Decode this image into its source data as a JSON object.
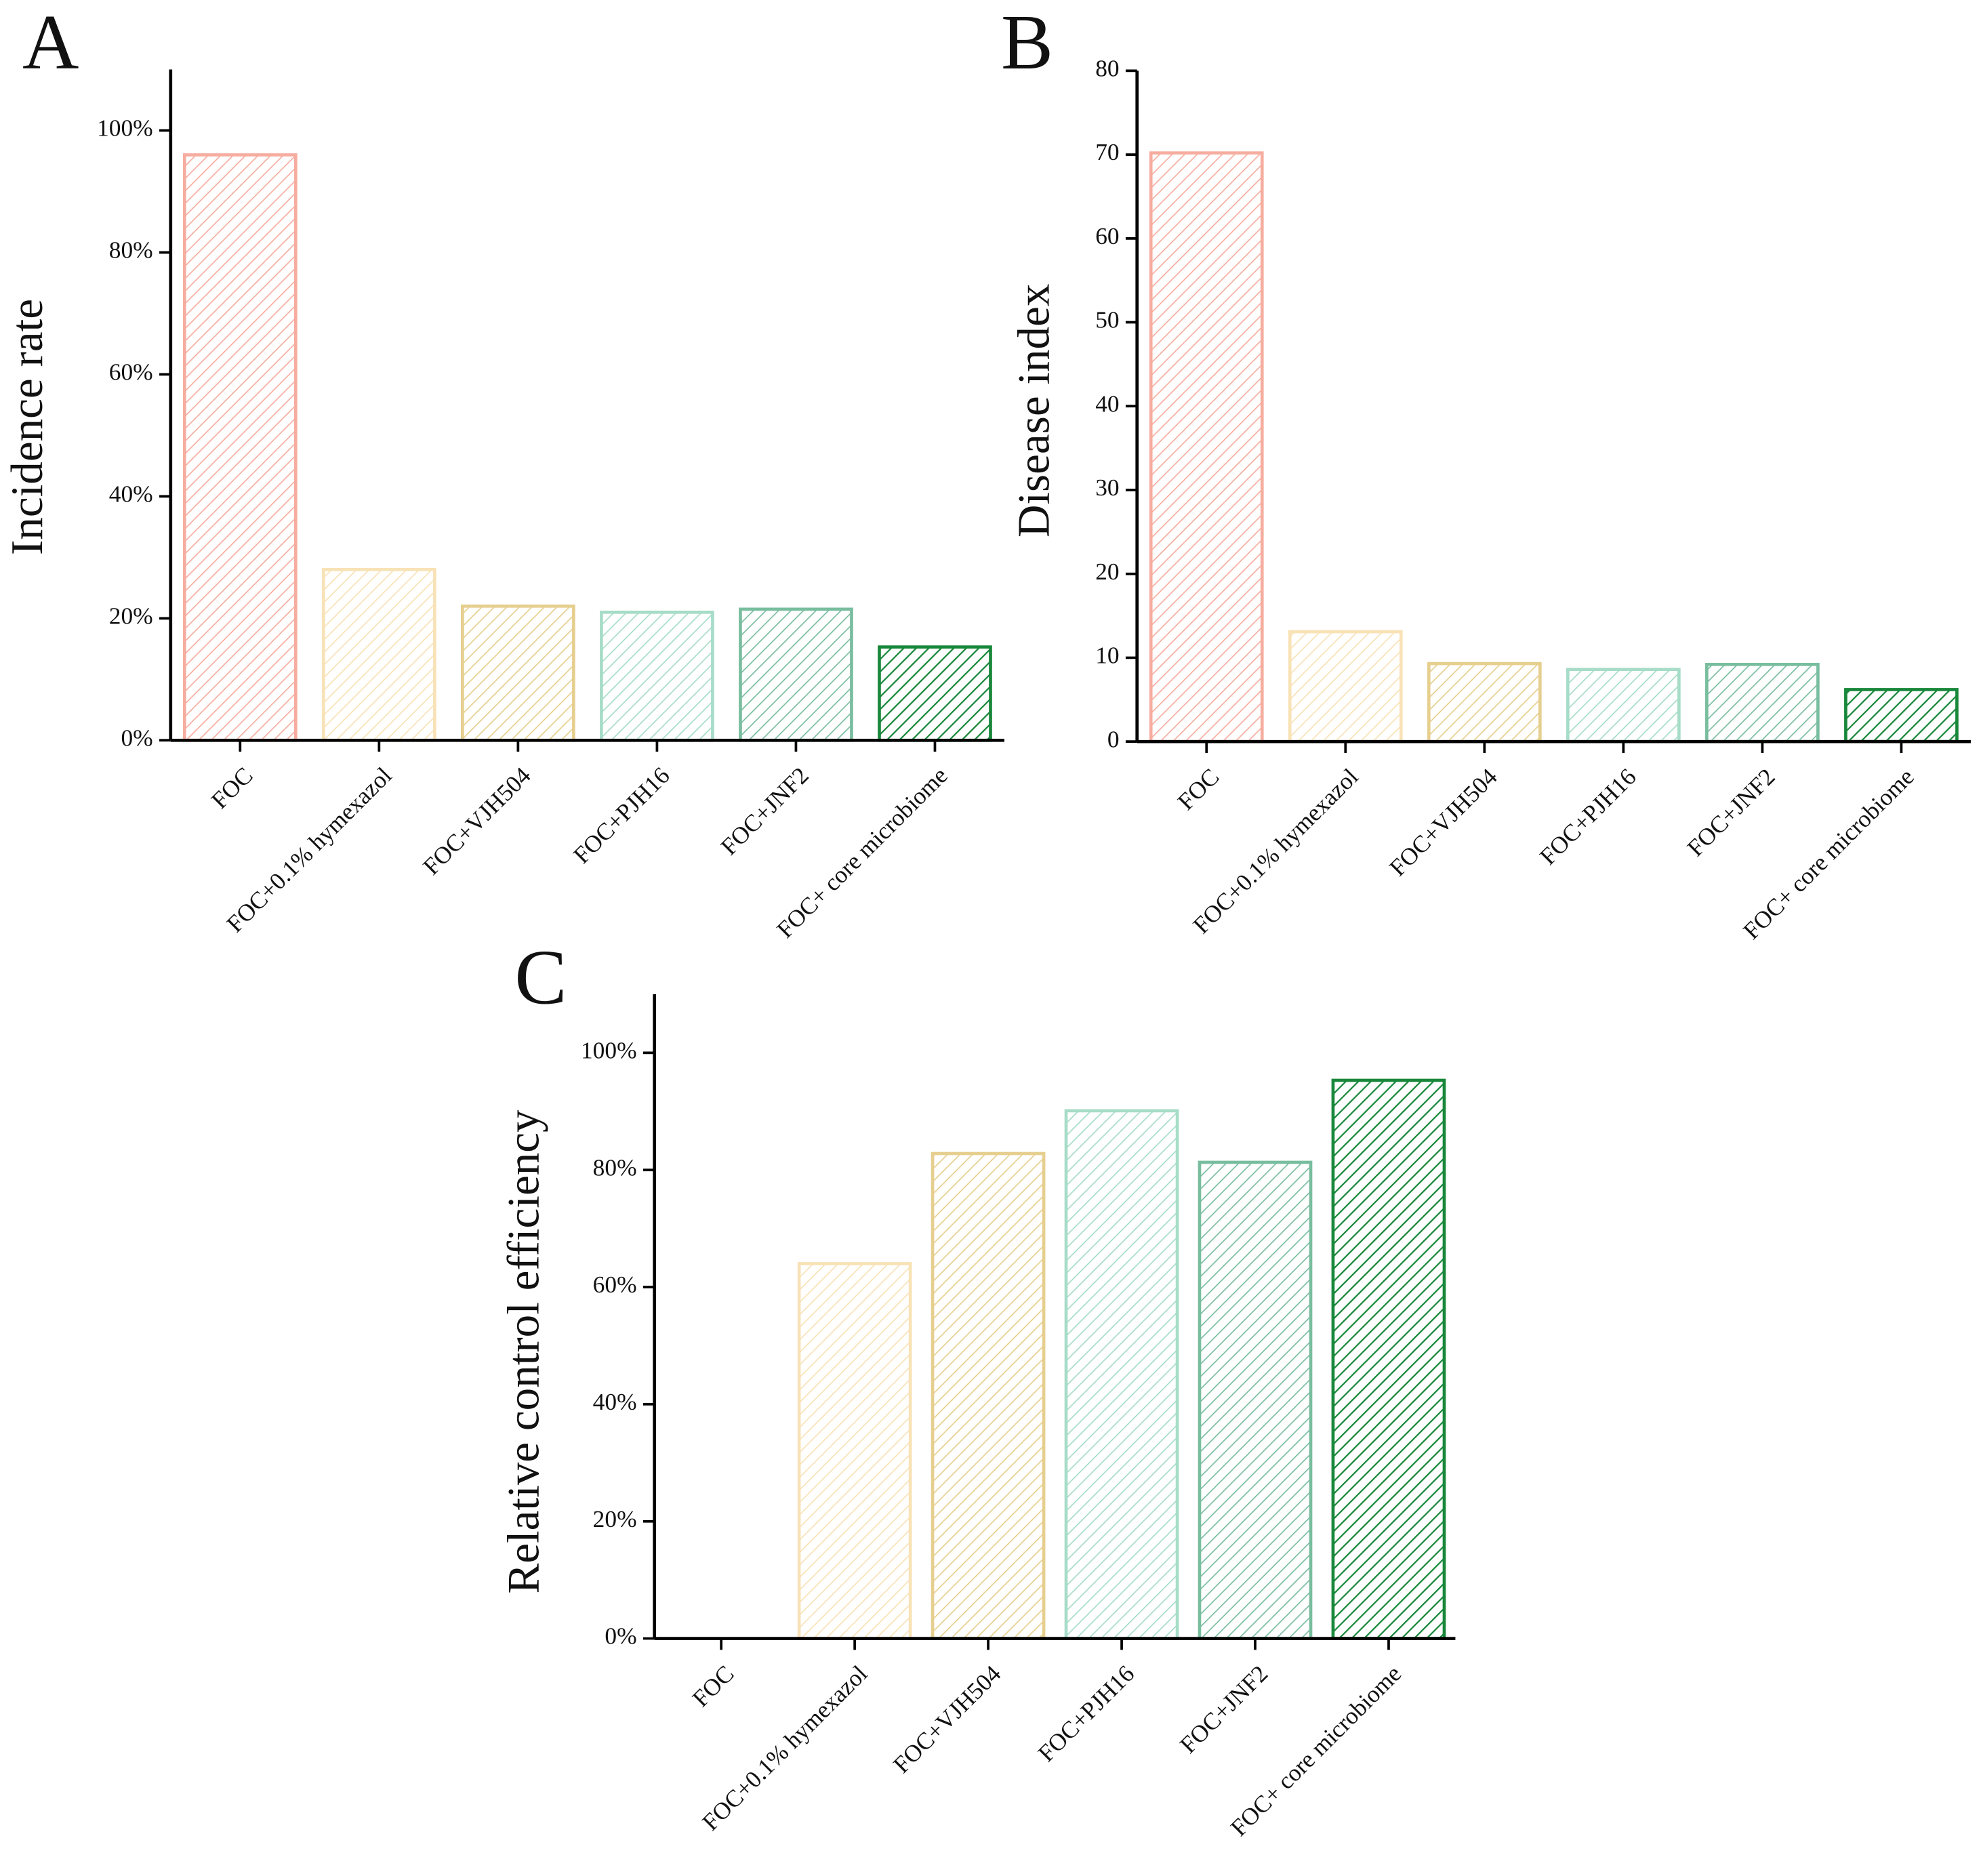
{
  "chart_data": [
    {
      "type": "bar",
      "label": "A",
      "ylabel": "Incidence rate",
      "categories": [
        "FOC",
        "FOC+0.1% hymexazol",
        "FOC+VJH504",
        "FOC+PJH16",
        "FOC+JNF2",
        "FOC+ core microbiome"
      ],
      "values": [
        96,
        28,
        22,
        21,
        21.5,
        15.3
      ],
      "colors": [
        "#f6ad9f",
        "#f8e2b6",
        "#e6cf8e",
        "#a6dcc8",
        "#79bd9f",
        "#18873a"
      ],
      "ylim": [
        0,
        110
      ],
      "yticks": [
        {
          "value": 0,
          "label": "0%"
        },
        {
          "value": 20,
          "label": "20%"
        },
        {
          "value": 40,
          "label": "40%"
        },
        {
          "value": 60,
          "label": "60%"
        },
        {
          "value": 80,
          "label": "80%"
        },
        {
          "value": 100,
          "label": "100%"
        }
      ]
    },
    {
      "type": "bar",
      "label": "B",
      "ylabel": "Disease index",
      "categories": [
        "FOC",
        "FOC+0.1% hymexazol",
        "FOC+VJH504",
        "FOC+PJH16",
        "FOC+JNF2",
        "FOC+ core microbiome"
      ],
      "values": [
        70.2,
        13.1,
        9.3,
        8.6,
        9.2,
        6.2
      ],
      "colors": [
        "#f6ad9f",
        "#f8e2b6",
        "#e6cf8e",
        "#a6dcc8",
        "#79bd9f",
        "#18873a"
      ],
      "ylim": [
        0,
        80
      ],
      "yticks": [
        0,
        10,
        20,
        30,
        40,
        50,
        60,
        70,
        80
      ]
    },
    {
      "type": "bar",
      "label": "C",
      "ylabel": "Relative control efficiency",
      "categories": [
        "FOC",
        "FOC+0.1% hymexazol",
        "FOC+VJH504",
        "FOC+PJH16",
        "FOC+JNF2",
        "FOC+ core microbiome"
      ],
      "values": [
        0,
        64,
        82.8,
        90.1,
        81.3,
        95.3
      ],
      "colors": [
        "#f6ad9f",
        "#f8e2b6",
        "#e6cf8e",
        "#a6dcc8",
        "#79bd9f",
        "#18873a"
      ],
      "ylim": [
        0,
        110
      ],
      "yticks": [
        {
          "value": 0,
          "label": "0%"
        },
        {
          "value": 20,
          "label": "20%"
        },
        {
          "value": 40,
          "label": "40%"
        },
        {
          "value": 60,
          "label": "60%"
        },
        {
          "value": 80,
          "label": "80%"
        },
        {
          "value": 100,
          "label": "100%"
        }
      ]
    }
  ]
}
